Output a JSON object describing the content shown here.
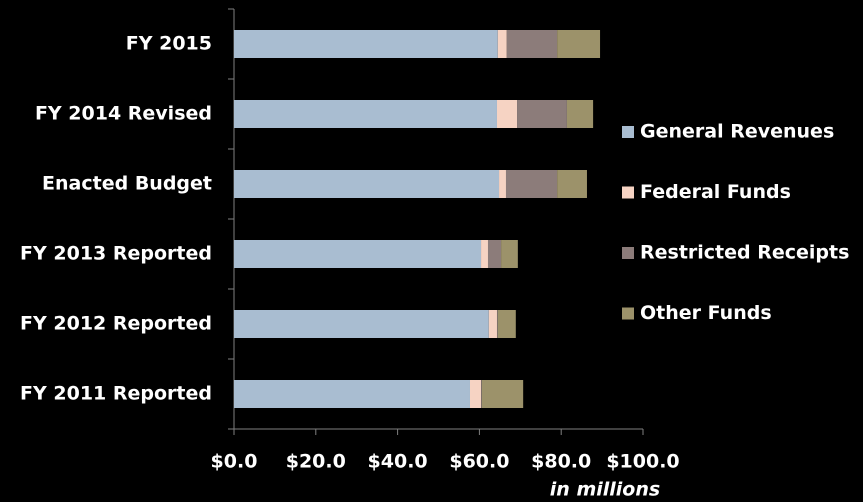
{
  "chart_data": {
    "type": "stacked-barh",
    "categories": [
      "FY 2015",
      "FY 2014 Revised",
      "Enacted Budget",
      "FY 2013 Reported",
      "FY 2012 Reported",
      "FY 2011 Reported"
    ],
    "series": [
      {
        "name": "General Revenues",
        "color": "#a9bdd1",
        "values": [
          64.5,
          64.3,
          64.8,
          60.4,
          62.3,
          57.7
        ]
      },
      {
        "name": "Federal Funds",
        "color": "#f6d3c3",
        "values": [
          2.2,
          4.9,
          1.7,
          1.7,
          2.0,
          2.7
        ]
      },
      {
        "name": "Restricted Receipts",
        "color": "#8c7c7a",
        "values": [
          12.3,
          12.2,
          12.5,
          3.2,
          0.2,
          0.2
        ]
      },
      {
        "name": "Other Funds",
        "color": "#9c926a",
        "values": [
          10.5,
          6.4,
          7.3,
          4.1,
          4.4,
          10.1
        ]
      }
    ],
    "xlim": [
      0,
      100
    ],
    "xticks": [
      {
        "value": 0,
        "label": "$0.0"
      },
      {
        "value": 20,
        "label": "$20.0"
      },
      {
        "value": 40,
        "label": "$40.0"
      },
      {
        "value": 60,
        "label": "$60.0"
      },
      {
        "value": 80,
        "label": "$80.0"
      },
      {
        "value": 100,
        "label": "$100.0"
      }
    ],
    "x_label": "in millions",
    "legend": "right"
  }
}
